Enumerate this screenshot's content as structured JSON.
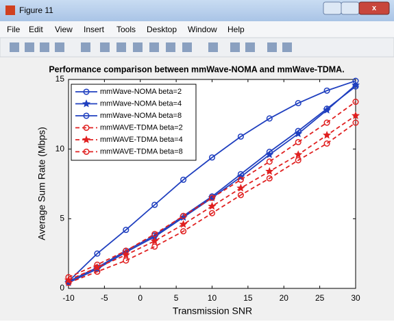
{
  "window": {
    "title": "Figure 11",
    "menu": [
      "File",
      "Edit",
      "View",
      "Insert",
      "Tools",
      "Desktop",
      "Window",
      "Help"
    ]
  },
  "chart_data": {
    "type": "line",
    "title": "Performance comparison between mmWave-NOMA and mmWave-TDMA.",
    "xlabel": "Transmission SNR",
    "ylabel": "Average Sum Rate (Mbps)",
    "x": [
      -10,
      -6,
      -2,
      2,
      6,
      10,
      14,
      18,
      22,
      26,
      30
    ],
    "xlim": [
      -10,
      30
    ],
    "xticks": [
      -10,
      -5,
      0,
      5,
      10,
      15,
      20,
      25,
      30
    ],
    "ylim": [
      0,
      15
    ],
    "yticks": [
      0,
      5,
      10,
      15
    ],
    "legend": "upper left",
    "series": [
      {
        "name": "mmWave-NOMA beta=2",
        "color": "#1f3fbf",
        "marker": "circle",
        "dash": false,
        "values": [
          0.5,
          2.5,
          4.2,
          6.0,
          7.8,
          9.4,
          10.9,
          12.2,
          13.3,
          14.2,
          14.9
        ]
      },
      {
        "name": "mmWave-NOMA beta=4",
        "color": "#1f3fbf",
        "marker": "star",
        "dash": false,
        "values": [
          0.4,
          1.4,
          2.6,
          3.7,
          5.1,
          6.5,
          8.0,
          9.6,
          11.1,
          12.8,
          14.6
        ]
      },
      {
        "name": "mmWave-NOMA beta=8",
        "color": "#1f3fbf",
        "marker": "circle",
        "dash": false,
        "values": [
          0.5,
          1.5,
          2.7,
          3.8,
          5.2,
          6.6,
          8.2,
          9.8,
          11.3,
          12.9,
          14.5
        ]
      },
      {
        "name": "mmWAVE-TDMA beta=2",
        "color": "#e02020",
        "marker": "circle",
        "dash": true,
        "values": [
          0.8,
          1.7,
          2.7,
          3.9,
          5.2,
          6.5,
          7.8,
          9.1,
          10.5,
          11.9,
          13.4
        ]
      },
      {
        "name": "mmWAVE-TDMA beta=4",
        "color": "#e02020",
        "marker": "star",
        "dash": true,
        "values": [
          0.6,
          1.5,
          2.4,
          3.4,
          4.6,
          5.9,
          7.2,
          8.4,
          9.6,
          11.0,
          12.4
        ]
      },
      {
        "name": "mmWAVE-TDMA beta=8",
        "color": "#e02020",
        "marker": "circle",
        "dash": true,
        "values": [
          0.4,
          1.2,
          2.0,
          3.0,
          4.1,
          5.4,
          6.7,
          7.9,
          9.2,
          10.4,
          11.9
        ]
      }
    ]
  }
}
